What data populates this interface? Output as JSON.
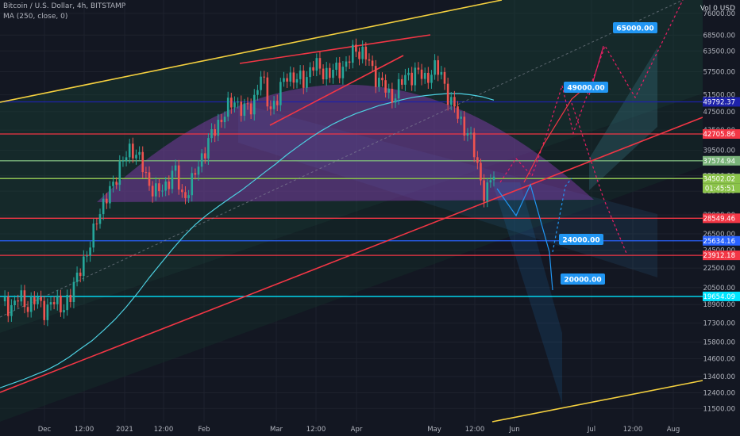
{
  "header": {
    "title": "Bitcoin / U.S. Dollar, 4h, BITSTAMP",
    "indicator": "MA (250, close, 0)",
    "currency": "USD",
    "volume": "Vol 0"
  },
  "chart_data": {
    "type": "line",
    "y_scale": "log",
    "ylim": [
      10800,
      81000
    ],
    "y_ticks": [
      11500,
      12400,
      13400,
      14600,
      15800,
      17300,
      18900,
      20500,
      22500,
      24500,
      26500,
      29000,
      32500,
      35000,
      39500,
      43500,
      47500,
      51500,
      57500,
      63500,
      68500,
      76000
    ],
    "x_ticks": [
      "Dec",
      "12:00",
      "2021",
      "12:00",
      "Feb",
      "Mar",
      "12:00",
      "Apr",
      "May",
      "12:00",
      "Jun",
      "Jul",
      "12:00",
      "Aug"
    ],
    "horizontal_levels": [
      {
        "value": 49792.37,
        "label": "49792.37",
        "color": "#1e22aa"
      },
      {
        "value": 42705.86,
        "label": "42705.86",
        "color": "#f23645"
      },
      {
        "value": 37574.94,
        "label": "37574.94",
        "color": "#7ab37a"
      },
      {
        "value": 34560.85,
        "label": "34560.85",
        "color": "#555a66"
      },
      {
        "value": 34502.02,
        "label": "34502.02",
        "color": "#8bc34a"
      },
      {
        "value": 28549.46,
        "label": "28549.46",
        "color": "#f23645"
      },
      {
        "value": 25634.16,
        "label": "25634.16",
        "color": "#2962ff"
      },
      {
        "value": 23912.18,
        "label": "23912.18",
        "color": "#f23645"
      },
      {
        "value": 19654.09,
        "label": "19654.09",
        "color": "#00e5ff"
      }
    ],
    "countdown": "01:45:51",
    "price_targets": [
      {
        "label": "65000.00"
      },
      {
        "label": "49000.00"
      },
      {
        "label": "24000.00"
      },
      {
        "label": "20000.00"
      }
    ],
    "price_series": [
      19200,
      18700,
      19500,
      18900,
      19300,
      18500,
      19100,
      18800,
      19400,
      22800,
      23700,
      29000,
      30500,
      34500,
      37000,
      40500,
      37500,
      34000,
      32000,
      33500,
      36000,
      31500,
      33500,
      38000,
      41000,
      45000,
      47500,
      50500,
      47500,
      49000,
      56500,
      48500,
      50500,
      57500,
      55000,
      55500,
      59000,
      58500,
      56500,
      58500,
      59500,
      64500,
      62500,
      57500,
      54500,
      50500,
      53500,
      56500,
      57500,
      55500,
      58500,
      56500,
      49500,
      46000,
      43000,
      37500,
      31500,
      35500
    ],
    "ma_series": [
      12700,
      12950,
      13200,
      13500,
      13800,
      14200,
      14700,
      15300,
      15900,
      16700,
      17600,
      18700,
      20000,
      21500,
      23000,
      24600,
      26200,
      27700,
      29000,
      30200,
      31400,
      32600,
      34000,
      35500,
      37000,
      38700,
      40300,
      41900,
      43400,
      44800,
      46000,
      47100,
      48000,
      48900,
      49600,
      50300,
      50900,
      51300,
      51600,
      51800,
      51800,
      51500,
      51000,
      50200
    ],
    "colors": {
      "candle_up": "#26a69a",
      "candle_down": "#ef5350",
      "ma": "#4dd0e1",
      "trend": "#f23645",
      "channel": "#f4d03f",
      "target_box": "#2196f3"
    }
  }
}
